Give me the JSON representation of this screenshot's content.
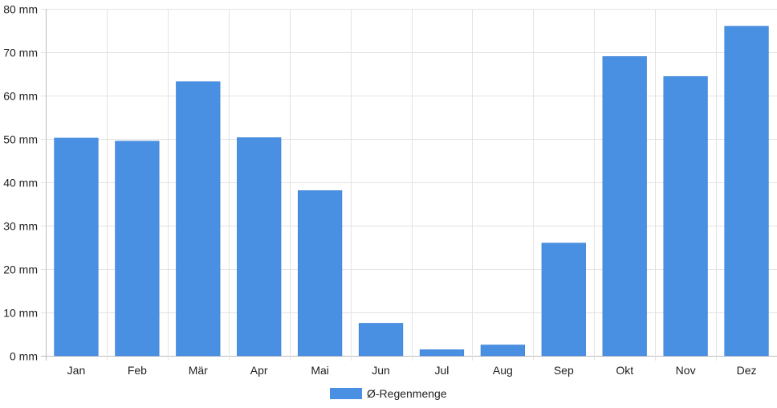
{
  "chart_data": {
    "type": "bar",
    "categories": [
      "Jan",
      "Feb",
      "Mär",
      "Apr",
      "Mai",
      "Jun",
      "Jul",
      "Aug",
      "Sep",
      "Okt",
      "Nov",
      "Dez"
    ],
    "series": [
      {
        "name": "Ø-Regenmenge",
        "values": [
          50.2,
          49.5,
          63.2,
          50.3,
          38.1,
          7.5,
          1.4,
          2.5,
          26.0,
          69.0,
          64.4,
          76.0
        ],
        "color": "#4a90e2"
      }
    ],
    "ylim": [
      0,
      80
    ],
    "yticks": [
      0,
      10,
      20,
      30,
      40,
      50,
      60,
      70,
      80
    ],
    "ytick_suffix": " mm",
    "grid": true,
    "legend_position": "bottom"
  }
}
